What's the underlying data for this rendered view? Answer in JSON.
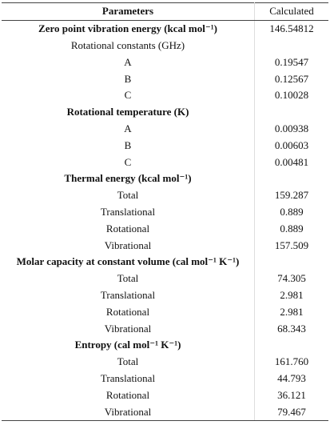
{
  "table": {
    "header": [
      "Parameters",
      "Calculated"
    ],
    "rows": [
      {
        "label": "Zero point vibration energy (kcal mol⁻¹)",
        "value": "146.54812",
        "bold": true
      },
      {
        "label": "Rotational constants (GHz)"
      },
      {
        "label": "A",
        "value": "0.19547"
      },
      {
        "label": "B",
        "value": "0.12567"
      },
      {
        "label": "C",
        "value": "0.10028"
      },
      {
        "label": "Rotational temperature (K)",
        "bold": true
      },
      {
        "label": "A",
        "value": "0.00938"
      },
      {
        "label": "B",
        "value": "0.00603"
      },
      {
        "label": "C",
        "value": "0.00481"
      },
      {
        "label": "Thermal energy (kcal mol⁻¹)",
        "bold": true
      },
      {
        "label": "Total",
        "value": "159.287"
      },
      {
        "label": "Translational",
        "value": "0.889"
      },
      {
        "label": "Rotational",
        "value": "0.889"
      },
      {
        "label": "Vibrational",
        "value": "157.509"
      },
      {
        "label": "Molar capacity at constant volume (cal mol⁻¹ K⁻¹)",
        "bold": true
      },
      {
        "label": "Total",
        "value": "74.305"
      },
      {
        "label": "Translational",
        "value": "2.981"
      },
      {
        "label": "Rotational",
        "value": "2.981"
      },
      {
        "label": "Vibrational",
        "value": "68.343"
      },
      {
        "label": "Entropy (cal mol⁻¹ K⁻¹)",
        "bold": true
      },
      {
        "label": "Total",
        "value": "161.760"
      },
      {
        "label": "Translational",
        "value": "44.793"
      },
      {
        "label": "Rotational",
        "value": "36.121"
      },
      {
        "label": "Vibrational",
        "value": "79.467"
      }
    ]
  }
}
